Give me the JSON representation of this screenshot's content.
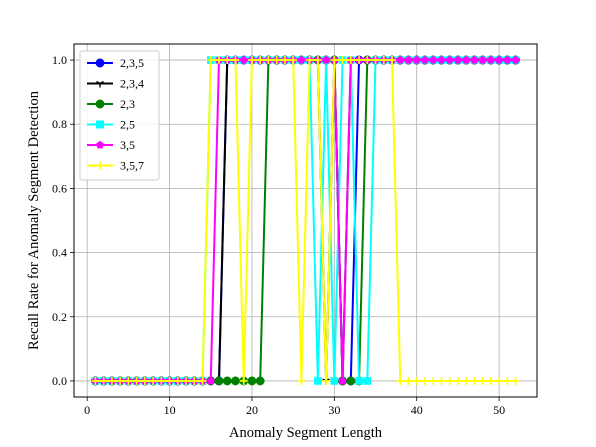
{
  "chart_data": {
    "type": "line",
    "title": "",
    "xlabel": "Anomaly Segment Length",
    "ylabel": "Recall Rate for Anomaly Segment Detection",
    "xlim": [
      -1.6,
      54.6
    ],
    "ylim": [
      -0.05,
      1.05
    ],
    "xticks": [
      0,
      10,
      20,
      30,
      40,
      50
    ],
    "yticks": [
      0.0,
      0.2,
      0.4,
      0.6,
      0.8,
      1.0
    ],
    "xtick_labels": [
      "0",
      "10",
      "20",
      "30",
      "40",
      "50"
    ],
    "ytick_labels": [
      "0.0",
      "0.2",
      "0.4",
      "0.6",
      "0.8",
      "1.0"
    ],
    "grid": true,
    "legend_position": "upper-left",
    "series": [
      {
        "name": "2,3,5",
        "color": "#0000ff",
        "marker": "circle",
        "x": [
          1,
          2,
          3,
          4,
          5,
          6,
          7,
          8,
          9,
          10,
          11,
          12,
          13,
          14,
          15,
          16,
          17,
          18,
          19,
          20,
          21,
          22,
          23,
          24,
          25,
          26,
          27,
          28,
          29,
          30,
          31,
          32,
          33,
          34,
          35,
          36,
          37,
          38,
          39,
          40,
          41,
          42,
          43,
          44,
          45,
          46,
          47,
          48,
          49,
          50,
          51,
          52
        ],
        "y": [
          0,
          0,
          0,
          0,
          0,
          0,
          0,
          0,
          0,
          0,
          0,
          0,
          0,
          0,
          0,
          0,
          1,
          1,
          1,
          1,
          1,
          1,
          1,
          1,
          1,
          1,
          1,
          1,
          1,
          1,
          0,
          0,
          1,
          1,
          1,
          1,
          1,
          1,
          1,
          1,
          1,
          1,
          1,
          1,
          1,
          1,
          1,
          1,
          1,
          1,
          1,
          1
        ]
      },
      {
        "name": "2,3,4",
        "color": "#000000",
        "marker": "tri",
        "x": [
          1,
          2,
          3,
          4,
          5,
          6,
          7,
          8,
          9,
          10,
          11,
          12,
          13,
          14,
          15,
          16,
          17,
          18,
          19,
          20,
          21,
          22,
          23,
          24,
          25,
          26,
          27,
          28,
          29,
          30,
          31,
          32,
          33,
          34,
          35,
          36,
          37,
          38,
          39,
          40,
          41,
          42,
          43,
          44,
          45,
          46,
          47,
          48,
          49,
          50,
          51,
          52
        ],
        "y": [
          0,
          0,
          0,
          0,
          0,
          0,
          0,
          0,
          0,
          0,
          0,
          0,
          0,
          0,
          0,
          0,
          1,
          1,
          1,
          1,
          1,
          1,
          1,
          1,
          1,
          1,
          1,
          1,
          0,
          1,
          0,
          1,
          1,
          1,
          1,
          1,
          1,
          1,
          1,
          1,
          1,
          1,
          1,
          1,
          1,
          1,
          1,
          1,
          1,
          1,
          1,
          1
        ]
      },
      {
        "name": "2,3",
        "color": "#008000",
        "marker": "circle",
        "x": [
          1,
          2,
          3,
          4,
          5,
          6,
          7,
          8,
          9,
          10,
          11,
          12,
          13,
          14,
          15,
          16,
          17,
          18,
          19,
          20,
          21,
          22,
          23,
          24,
          25,
          26,
          27,
          28,
          29,
          30,
          31,
          32,
          33,
          34,
          35,
          36,
          37,
          38,
          39,
          40,
          41,
          42,
          43,
          44,
          45,
          46,
          47,
          48,
          49,
          50,
          51,
          52
        ],
        "y": [
          0,
          0,
          0,
          0,
          0,
          0,
          0,
          0,
          0,
          0,
          0,
          0,
          0,
          0,
          0,
          0,
          0,
          0,
          0,
          0,
          0,
          1,
          1,
          1,
          1,
          1,
          1,
          1,
          1,
          1,
          0,
          0,
          0,
          1,
          1,
          1,
          1,
          1,
          1,
          1,
          1,
          1,
          1,
          1,
          1,
          1,
          1,
          1,
          1,
          1,
          1,
          1
        ]
      },
      {
        "name": "2,5",
        "color": "#00ffff",
        "marker": "square",
        "x": [
          1,
          2,
          3,
          4,
          5,
          6,
          7,
          8,
          9,
          10,
          11,
          12,
          13,
          14,
          15,
          16,
          17,
          18,
          19,
          20,
          21,
          22,
          23,
          24,
          25,
          26,
          27,
          28,
          29,
          30,
          31,
          32,
          33,
          34,
          35,
          36,
          37,
          38,
          39,
          40,
          41,
          42,
          43,
          44,
          45,
          46,
          47,
          48,
          49,
          50,
          51,
          52
        ],
        "y": [
          0,
          0,
          0,
          0,
          0,
          0,
          0,
          0,
          0,
          0,
          0,
          0,
          0,
          0,
          1,
          1,
          1,
          1,
          1,
          1,
          1,
          1,
          1,
          1,
          1,
          1,
          1,
          0,
          1,
          0,
          1,
          1,
          0,
          0,
          1,
          1,
          1,
          1,
          1,
          1,
          1,
          1,
          1,
          1,
          1,
          1,
          1,
          1,
          1,
          1,
          1,
          1
        ]
      },
      {
        "name": "3,5",
        "color": "#ff00ff",
        "marker": "pentagon",
        "x": [
          1,
          2,
          3,
          4,
          5,
          6,
          7,
          8,
          9,
          10,
          11,
          12,
          13,
          14,
          15,
          16,
          17,
          18,
          19,
          20,
          21,
          22,
          23,
          24,
          25,
          26,
          27,
          28,
          29,
          30,
          31,
          32,
          33,
          34,
          35,
          36,
          37,
          38,
          39,
          40,
          41,
          42,
          43,
          44,
          45,
          46,
          47,
          48,
          49,
          50,
          51,
          52
        ],
        "y": [
          0,
          0,
          0,
          0,
          0,
          0,
          0,
          0,
          0,
          0,
          0,
          0,
          0,
          0,
          0,
          1,
          1,
          1,
          1,
          1,
          1,
          1,
          1,
          1,
          1,
          1,
          1,
          1,
          1,
          1,
          0,
          1,
          1,
          1,
          1,
          1,
          1,
          1,
          1,
          1,
          1,
          1,
          1,
          1,
          1,
          1,
          1,
          1,
          1,
          1,
          1,
          1
        ]
      },
      {
        "name": "3,5,7",
        "color": "#ffff00",
        "marker": "plus",
        "x": [
          1,
          2,
          3,
          4,
          5,
          6,
          7,
          8,
          9,
          10,
          11,
          12,
          13,
          14,
          15,
          16,
          17,
          18,
          19,
          20,
          21,
          22,
          23,
          24,
          25,
          26,
          27,
          28,
          29,
          30,
          31,
          32,
          33,
          34,
          35,
          36,
          37,
          38,
          39,
          40,
          41,
          42,
          43,
          44,
          45,
          46,
          47,
          48,
          49,
          50,
          51,
          52
        ],
        "y": [
          0,
          0,
          0,
          0,
          0,
          0,
          0,
          0,
          0,
          0,
          0,
          0,
          0,
          0,
          1,
          1,
          1,
          1,
          0,
          1,
          1,
          1,
          1,
          1,
          1,
          0,
          1,
          1,
          0,
          1,
          1,
          1,
          1,
          1,
          1,
          1,
          1,
          0,
          0,
          0,
          0,
          0,
          0,
          0,
          0,
          0,
          0,
          0,
          0,
          0,
          0,
          0
        ]
      }
    ]
  }
}
